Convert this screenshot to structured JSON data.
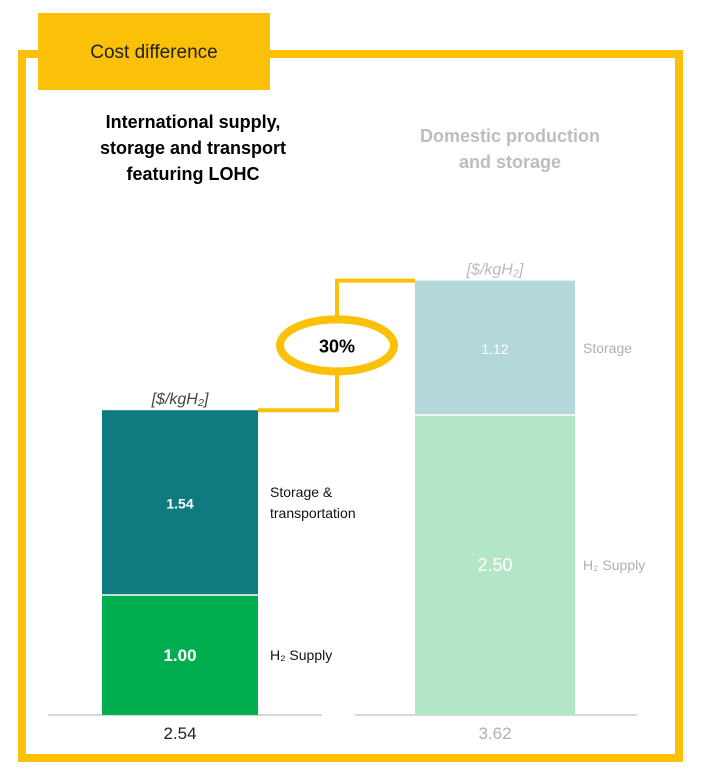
{
  "header": {
    "tab_label": "Cost difference"
  },
  "colors": {
    "frame": "#FBC108",
    "lohc_storage": "#0F7B80",
    "lohc_supply": "#00AD4F",
    "domestic_storage": "#B4D8DA",
    "domestic_supply": "#B2E6C7",
    "domestic_text": "#B9B9B9"
  },
  "chart_data": {
    "type": "bar",
    "stacked": true,
    "unit_label": "[$/kgH₂]",
    "difference_label": "30%",
    "groups": [
      {
        "title_lines": [
          "International supply,",
          "storage and transport",
          "featuring LOHC"
        ],
        "total_label": "2.54",
        "segments": [
          {
            "name_lines": [
              "H₂ Supply"
            ],
            "value": 1.0,
            "label": "1.00"
          },
          {
            "name_lines": [
              "Storage &",
              "transportation"
            ],
            "value": 1.54,
            "label": "1.54"
          }
        ]
      },
      {
        "title_lines": [
          "Domestic production",
          "and storage"
        ],
        "total_label": "3.62",
        "segments": [
          {
            "name_lines": [
              "H₂ Supply"
            ],
            "value": 2.5,
            "label": "2.50"
          },
          {
            "name_lines": [
              "Storage"
            ],
            "value": 1.12,
            "label": "1.12"
          }
        ]
      }
    ]
  }
}
